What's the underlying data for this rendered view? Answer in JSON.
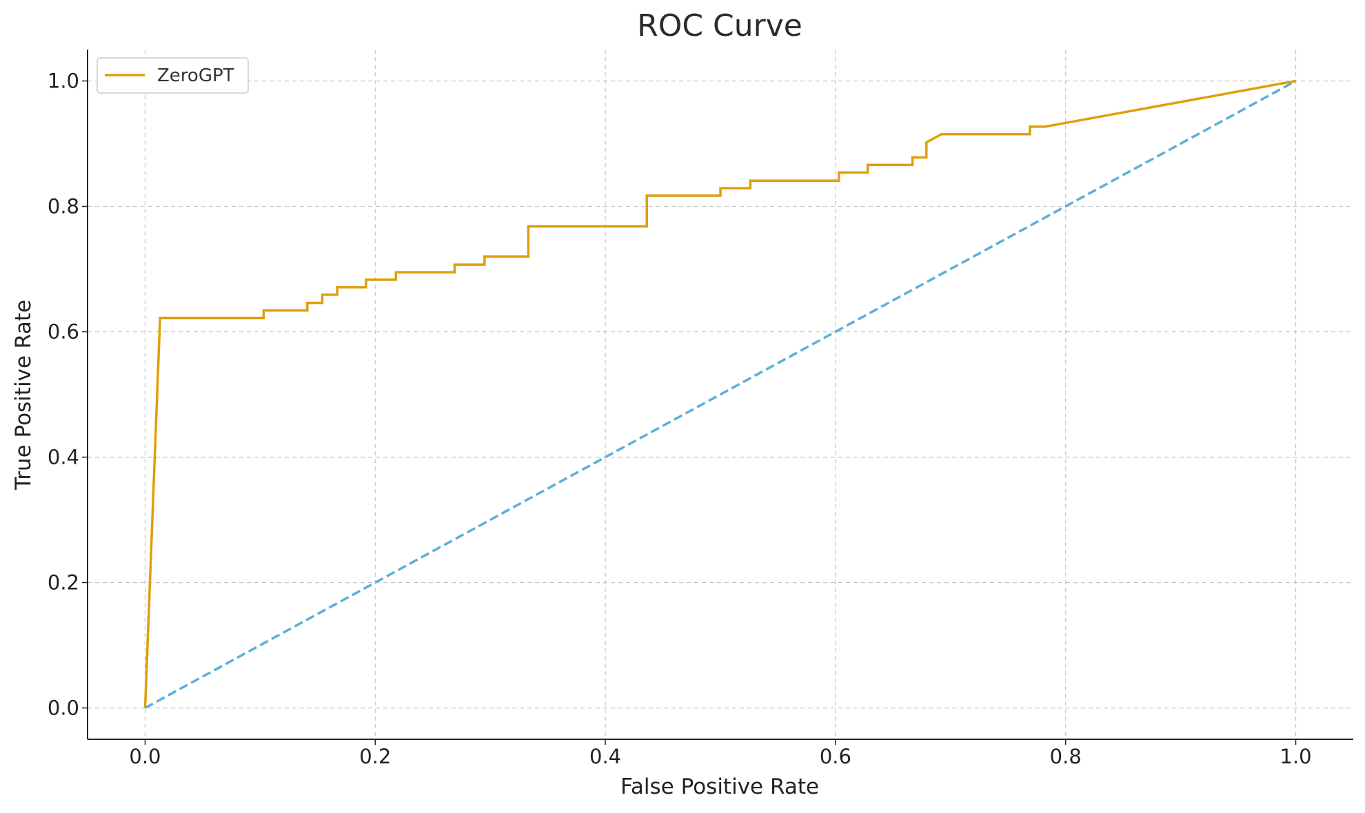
{
  "chart_data": {
    "type": "line",
    "title": "ROC Curve",
    "xlabel": "False Positive Rate",
    "ylabel": "True Positive Rate",
    "xlim": [
      -0.05,
      1.05
    ],
    "ylim": [
      -0.05,
      1.05
    ],
    "xticks": [
      0.0,
      0.2,
      0.4,
      0.6,
      0.8,
      1.0
    ],
    "xtick_labels": [
      "0.0",
      "0.2",
      "0.4",
      "0.6",
      "0.8",
      "1.0"
    ],
    "yticks": [
      0.0,
      0.2,
      0.4,
      0.6,
      0.8,
      1.0
    ],
    "ytick_labels": [
      "0.0",
      "0.2",
      "0.4",
      "0.6",
      "0.8",
      "1.0"
    ],
    "grid": true,
    "legend_position": "top-left",
    "series": [
      {
        "name": "ZeroGPT",
        "color": "#E09E0A",
        "line_style": "solid",
        "x": [
          0.0,
          0.013,
          0.103,
          0.103,
          0.141,
          0.141,
          0.154,
          0.154,
          0.167,
          0.167,
          0.192,
          0.192,
          0.218,
          0.218,
          0.269,
          0.269,
          0.295,
          0.295,
          0.333,
          0.333,
          0.436,
          0.436,
          0.5,
          0.5,
          0.526,
          0.526,
          0.603,
          0.603,
          0.628,
          0.628,
          0.667,
          0.667,
          0.679,
          0.679,
          0.692,
          0.769,
          0.769,
          0.782,
          1.0
        ],
        "y": [
          0.0,
          0.622,
          0.622,
          0.634,
          0.634,
          0.646,
          0.646,
          0.659,
          0.659,
          0.671,
          0.671,
          0.683,
          0.683,
          0.695,
          0.695,
          0.707,
          0.707,
          0.72,
          0.72,
          0.768,
          0.768,
          0.817,
          0.817,
          0.829,
          0.829,
          0.841,
          0.841,
          0.854,
          0.854,
          0.866,
          0.866,
          0.878,
          0.878,
          0.902,
          0.915,
          0.915,
          0.927,
          0.927,
          1.0
        ]
      },
      {
        "name": "",
        "color": "#5AB0DA",
        "line_style": "dashed",
        "x": [
          0.0,
          1.0
        ],
        "y": [
          0.0,
          1.0
        ]
      }
    ]
  }
}
